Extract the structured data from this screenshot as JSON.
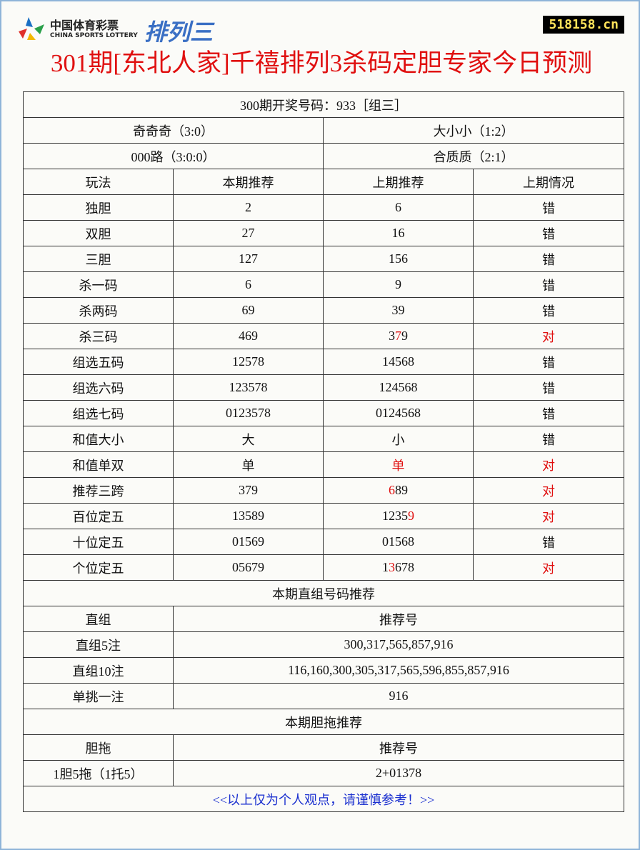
{
  "header": {
    "logo_cn": "中国体育彩票",
    "logo_en": "CHINA SPORTS LOTTERY",
    "logo_game": "排列三",
    "site": "518158.cn",
    "title": "301期[东北人家]千禧排列3杀码定胆专家今日预测"
  },
  "summary": {
    "draw": "300期开奖号码：933［组三］",
    "rows": [
      [
        "奇奇奇（3:0）",
        "大小小（1:2）"
      ],
      [
        "000路（3:0:0）",
        "合质质（2:1）"
      ]
    ]
  },
  "table": {
    "columns": [
      "玩法",
      "本期推荐",
      "上期推荐",
      "上期情况"
    ],
    "rows": [
      [
        "独胆",
        "2",
        "6",
        "错"
      ],
      [
        "双胆",
        "27",
        "16",
        "错"
      ],
      [
        "三胆",
        "127",
        "156",
        "错"
      ],
      [
        "杀一码",
        "6",
        "9",
        "错"
      ],
      [
        "杀两码",
        "69",
        "39",
        "错"
      ],
      [
        "杀三码",
        "469",
        {
          "parts": [
            "3",
            "7",
            "9"
          ],
          "hit": 1
        },
        {
          "parts": [
            "对"
          ],
          "hit": 0
        }
      ],
      [
        "组选五码",
        "12578",
        "14568",
        "错"
      ],
      [
        "组选六码",
        "123578",
        "124568",
        "错"
      ],
      [
        "组选七码",
        "0123578",
        "0124568",
        "错"
      ],
      [
        "和值大小",
        "大",
        "小",
        "错"
      ],
      [
        "和值单双",
        "单",
        {
          "parts": [
            "单"
          ],
          "hit": 0
        },
        {
          "parts": [
            "对"
          ],
          "hit": 0
        }
      ],
      [
        "推荐三跨",
        "379",
        {
          "parts": [
            "6",
            "89"
          ],
          "hit": 0
        },
        {
          "parts": [
            "对"
          ],
          "hit": 0
        }
      ],
      [
        "百位定五",
        "13589",
        {
          "parts": [
            "1235",
            "9"
          ],
          "hit": 1
        },
        {
          "parts": [
            "对"
          ],
          "hit": 0
        }
      ],
      [
        "十位定五",
        "01569",
        "01568",
        "错"
      ],
      [
        "个位定五",
        "05679",
        {
          "parts": [
            "1",
            "3",
            "678"
          ],
          "hit": 1
        },
        {
          "parts": [
            "对"
          ],
          "hit": 0
        }
      ]
    ]
  },
  "direct": {
    "title": "本期直组号码推荐",
    "head": [
      "直组",
      "推荐号"
    ],
    "rows": [
      [
        "直组5注",
        "300,317,565,857,916"
      ],
      [
        "直组10注",
        "116,160,300,305,317,565,596,855,857,916"
      ],
      [
        "单挑一注",
        "916"
      ]
    ]
  },
  "dantuo": {
    "title": "本期胆拖推荐",
    "head": [
      "胆拖",
      "推荐号"
    ],
    "rows": [
      [
        "1胆5拖（1托5）",
        "2+01378"
      ]
    ]
  },
  "footer": "<<以上仅为个人观点，请谨慎参考！>>"
}
